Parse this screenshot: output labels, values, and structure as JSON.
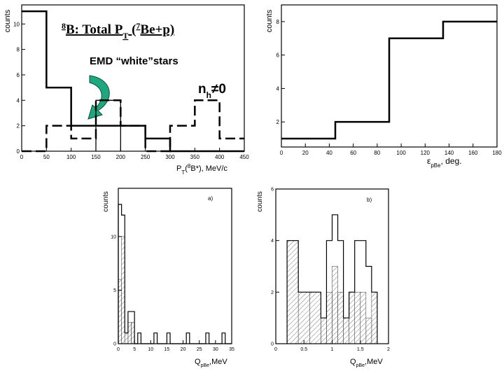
{
  "colors": {
    "axis": "#000000",
    "arrow_fill": "#1fa87f",
    "arrow_stroke": "#0b4f3a",
    "hatch": "#555555"
  },
  "chart_data": [
    {
      "id": "p1",
      "type": "histogram",
      "xlim": [
        0,
        450
      ],
      "ylim": [
        0,
        11.5
      ],
      "xticks": [
        0,
        50,
        100,
        150,
        200,
        250,
        300,
        350,
        400,
        450
      ],
      "yticks": [
        0,
        2,
        4,
        6,
        8,
        10
      ],
      "xlabel_main": "P",
      "xlabel_sub": "T",
      "xlabel_paren_open": "(",
      "xlabel_sup": "8",
      "xlabel_tail": "B*), MeV/c",
      "ylabel": "counts",
      "title_sup": "8",
      "title_main": "B: Total P",
      "title_sub": "T",
      "title_mid": " (",
      "title_sup2": "7",
      "title_tail": "Be+p)",
      "annotation": "EMD “white”stars",
      "nh_main": "n",
      "nh_sub": "h",
      "nh_tail": "≠0",
      "series": [
        {
          "name": "",
          "style": "solid",
          "width": 2.5,
          "edges": [
            0,
            50,
            100,
            150,
            200,
            250,
            300,
            350,
            400,
            450
          ],
          "values": [
            11,
            5,
            2,
            2,
            2,
            1,
            0,
            0,
            0
          ]
        },
        {
          "name": "",
          "style": "thin",
          "width": 1.3,
          "edges": [
            150,
            200
          ],
          "values": [
            4
          ]
        },
        {
          "name": "",
          "style": "dashed",
          "width": 2.5,
          "edges": [
            0,
            50,
            100,
            150,
            200,
            250,
            300,
            350,
            400,
            450
          ],
          "values": [
            0,
            2,
            1,
            4,
            2,
            0,
            2,
            4,
            1
          ]
        }
      ]
    },
    {
      "id": "p2",
      "type": "histogram",
      "xlim": [
        0,
        180
      ],
      "ylim": [
        0.5,
        9
      ],
      "xticks": [
        0,
        20,
        40,
        60,
        80,
        100,
        120,
        140,
        160,
        180
      ],
      "yticks": [
        2,
        4,
        6,
        8
      ],
      "xlabel_main": "ε",
      "xlabel_sub": "pBe",
      "xlabel_tail": ", deg.",
      "ylabel": "counts",
      "series": [
        {
          "name": "",
          "style": "solid",
          "width": 2.5,
          "edges": [
            0,
            45,
            90,
            135,
            180
          ],
          "values": [
            1,
            2,
            7,
            8
          ]
        }
      ]
    },
    {
      "id": "p3",
      "type": "histogram",
      "xlim": [
        0,
        35
      ],
      "ylim": [
        0,
        14.5
      ],
      "xticks": [
        0,
        5,
        10,
        15,
        20,
        25,
        30,
        35
      ],
      "yticks": [
        0,
        5,
        10
      ],
      "xlabel_main": "Q",
      "xlabel_sub": "pBe",
      "xlabel_tail": ",MeV",
      "ylabel": "counts",
      "panel_label": "a)",
      "series": [
        {
          "name": "",
          "style": "outline",
          "width": 1.2,
          "edges": [
            0,
            1,
            2,
            3,
            4,
            5,
            6,
            7,
            8,
            9,
            10,
            11,
            12,
            13,
            14,
            15,
            16,
            17,
            18,
            19,
            20,
            21,
            22,
            23,
            24,
            25,
            26,
            27,
            28,
            29,
            30,
            31,
            32,
            33,
            34,
            35
          ],
          "values": [
            13,
            12,
            1,
            3,
            3,
            0,
            1,
            0,
            0,
            0,
            0,
            1,
            0,
            0,
            0,
            1,
            0,
            0,
            0,
            0,
            0,
            1,
            0,
            0,
            0,
            0,
            0,
            1,
            0,
            0,
            0,
            0,
            1,
            0,
            0
          ]
        },
        {
          "name": "",
          "style": "hatched",
          "width": 0.8,
          "edges": [
            0,
            1,
            2,
            3,
            4,
            5
          ],
          "values": [
            6,
            10,
            1,
            2,
            2
          ]
        }
      ]
    },
    {
      "id": "p4",
      "type": "histogram",
      "xlim": [
        0,
        2
      ],
      "ylim": [
        0,
        6
      ],
      "xticks": [
        0,
        0.5,
        1,
        1.5,
        2
      ],
      "yticks": [
        0,
        2,
        4,
        6
      ],
      "xlabel_main": "Q",
      "xlabel_sub": "pBe",
      "xlabel_tail": ",MeV",
      "ylabel": "counts",
      "panel_label": "b)",
      "series": [
        {
          "name": "",
          "style": "outline",
          "width": 1.2,
          "edges": [
            0.2,
            0.4,
            0.6,
            0.8,
            0.9,
            1.0,
            1.1,
            1.2,
            1.3,
            1.4,
            1.5,
            1.6,
            1.7,
            1.8
          ],
          "values": [
            4,
            2,
            2,
            1,
            4,
            5,
            4,
            1,
            2,
            4,
            4,
            3,
            2
          ]
        },
        {
          "name": "",
          "style": "hatched",
          "width": 0.8,
          "edges": [
            0.2,
            0.4,
            0.6,
            0.8,
            0.9,
            1.0,
            1.1,
            1.2,
            1.3,
            1.4,
            1.5,
            1.6,
            1.7,
            1.8
          ],
          "values": [
            4,
            2,
            2,
            1,
            2,
            3,
            2,
            1,
            2,
            2,
            2,
            1,
            2
          ]
        }
      ]
    }
  ]
}
